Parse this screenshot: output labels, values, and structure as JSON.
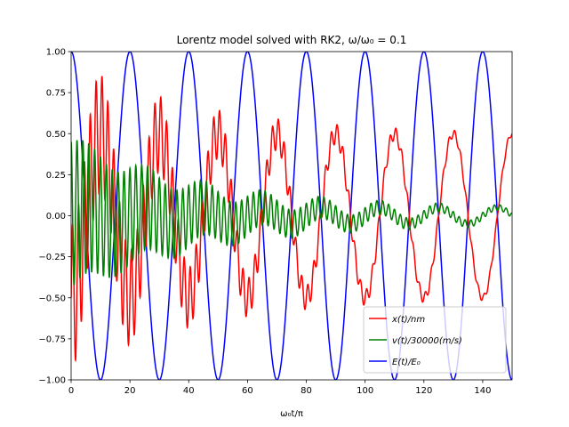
{
  "chart_data": {
    "type": "line",
    "title": "Lorentz model solved with RK2, ω/ω₀ = 0.1",
    "xlabel": "ω₀t/π",
    "ylabel": "",
    "xlim": [
      0,
      150
    ],
    "ylim": [
      -1.0,
      1.0
    ],
    "xticks": [
      0,
      20,
      40,
      60,
      80,
      100,
      120,
      140
    ],
    "xtick_labels": [
      "0",
      "20",
      "40",
      "60",
      "80",
      "100",
      "120",
      "140"
    ],
    "yticks": [
      1.0,
      0.75,
      0.5,
      0.25,
      0.0,
      -0.25,
      -0.5,
      -0.75,
      -1.0
    ],
    "ytick_labels": [
      "1.00",
      "0.75",
      "0.50",
      "0.25",
      "0.00",
      "−0.25",
      "−0.50",
      "−0.75",
      "−1.00"
    ],
    "grid": false,
    "legend_position": "lower-right",
    "series": [
      {
        "name": "x(t)/nm",
        "color": "#ff0000",
        "model": "steady amplitude 0.5 oscillation at period 20 plus decaying transient (amplitude ~0.45, decay time ~45) at period 2"
      },
      {
        "name": "v(t)/30000(m/s)",
        "color": "#008000",
        "model": "steady amplitude 0.05 oscillation at period 20 plus decaying transient (amplitude ~0.45, decay time ~45) at period 2"
      },
      {
        "name": "E(t)/E₀",
        "color": "#0000ff",
        "model": "cos oscillation amplitude 1.0 with period 20"
      }
    ]
  }
}
